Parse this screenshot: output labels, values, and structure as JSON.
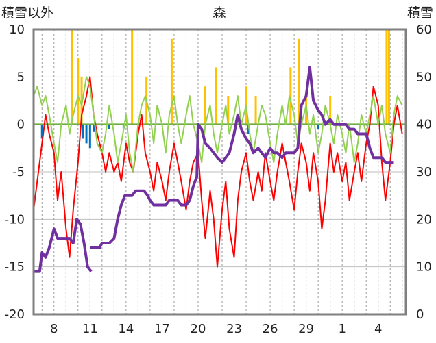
{
  "chart_data": {
    "type": "line",
    "title": "森",
    "left_axis_label": "積雪以外",
    "right_axis_label": "積雪",
    "ylim_left": [
      -20,
      10
    ],
    "yticks_left": [
      "10",
      "5",
      "0",
      "-5",
      "-10",
      "-15",
      "-20"
    ],
    "ylim_right": [
      0,
      60
    ],
    "yticks_right": [
      "60",
      "50",
      "40",
      "30",
      "20",
      "10",
      "0"
    ],
    "x_ticks": [
      "8",
      "11",
      "14",
      "17",
      "20",
      "23",
      "26",
      "29",
      "1",
      "4"
    ],
    "grid": true,
    "colors": {
      "temperature": "#ff0000",
      "humidity": "#92d050",
      "snow_depth": "#7030a0",
      "precip": "#ffc000",
      "negative": "#0070c0",
      "zero_line": "#70ad47"
    },
    "series": [
      {
        "key": "temperature",
        "axis": "left",
        "color": "#ff0000",
        "points": [
          [
            6.3,
            -9
          ],
          [
            6.6,
            -6
          ],
          [
            7.0,
            -2
          ],
          [
            7.3,
            1
          ],
          [
            7.6,
            -1
          ],
          [
            8.0,
            -3
          ],
          [
            8.3,
            -8
          ],
          [
            8.6,
            -5
          ],
          [
            9.0,
            -11
          ],
          [
            9.3,
            -14
          ],
          [
            9.6,
            -9
          ],
          [
            10.0,
            -4
          ],
          [
            10.3,
            1
          ],
          [
            10.7,
            3
          ],
          [
            11.0,
            5
          ],
          [
            11.3,
            1
          ],
          [
            11.6,
            -1
          ],
          [
            12.0,
            -3
          ],
          [
            12.3,
            -5
          ],
          [
            12.6,
            -3
          ],
          [
            13.0,
            -5
          ],
          [
            13.3,
            -4
          ],
          [
            13.6,
            -6
          ],
          [
            14.0,
            -2
          ],
          [
            14.3,
            -4
          ],
          [
            14.6,
            -5
          ],
          [
            15.0,
            -1
          ],
          [
            15.3,
            1
          ],
          [
            15.6,
            -3
          ],
          [
            16.0,
            -5
          ],
          [
            16.3,
            -7
          ],
          [
            16.6,
            -4
          ],
          [
            17.0,
            -6
          ],
          [
            17.3,
            -8
          ],
          [
            17.6,
            -5
          ],
          [
            18.0,
            -2
          ],
          [
            18.3,
            -4
          ],
          [
            18.6,
            -6
          ],
          [
            19.0,
            -9
          ],
          [
            19.3,
            -6
          ],
          [
            19.6,
            -4
          ],
          [
            20.0,
            -3
          ],
          [
            20.3,
            -8
          ],
          [
            20.6,
            -12
          ],
          [
            21.0,
            -7
          ],
          [
            21.3,
            -10
          ],
          [
            21.6,
            -15
          ],
          [
            22.0,
            -9
          ],
          [
            22.3,
            -6
          ],
          [
            22.6,
            -11
          ],
          [
            23.0,
            -14
          ],
          [
            23.3,
            -8
          ],
          [
            23.6,
            -5
          ],
          [
            24.0,
            -3
          ],
          [
            24.3,
            -6
          ],
          [
            24.6,
            -8
          ],
          [
            25.0,
            -5
          ],
          [
            25.3,
            -7
          ],
          [
            25.6,
            -3
          ],
          [
            26.0,
            -6
          ],
          [
            26.3,
            -8
          ],
          [
            26.6,
            -5
          ],
          [
            27.0,
            -2
          ],
          [
            27.3,
            -4
          ],
          [
            27.6,
            -6
          ],
          [
            28.0,
            -9
          ],
          [
            28.3,
            -5
          ],
          [
            28.6,
            -2
          ],
          [
            29.0,
            -4
          ],
          [
            29.3,
            -7
          ],
          [
            29.6,
            -3
          ],
          [
            30.0,
            -6
          ],
          [
            30.3,
            -11
          ],
          [
            30.6,
            -8
          ],
          [
            31.0,
            -2
          ],
          [
            31.3,
            -5
          ],
          [
            31.6,
            -3
          ],
          [
            32.0,
            -6
          ],
          [
            32.3,
            -4
          ],
          [
            32.6,
            -8
          ],
          [
            33.0,
            -5
          ],
          [
            33.3,
            -3
          ],
          [
            33.6,
            -6
          ],
          [
            34.0,
            -2
          ],
          [
            34.3,
            0
          ],
          [
            34.6,
            4
          ],
          [
            35.0,
            2
          ],
          [
            35.3,
            -4
          ],
          [
            35.6,
            -8
          ],
          [
            36.0,
            -4
          ],
          [
            36.3,
            0
          ],
          [
            36.6,
            2
          ],
          [
            37.0,
            -1
          ]
        ]
      },
      {
        "key": "humidity",
        "axis": "left",
        "color": "#92d050",
        "points": [
          [
            6.3,
            3
          ],
          [
            6.6,
            4
          ],
          [
            7.0,
            2
          ],
          [
            7.3,
            3
          ],
          [
            7.6,
            1
          ],
          [
            8.0,
            -2
          ],
          [
            8.3,
            -4
          ],
          [
            8.6,
            0
          ],
          [
            9.0,
            2
          ],
          [
            9.3,
            -1
          ],
          [
            9.6,
            1
          ],
          [
            10.0,
            3
          ],
          [
            10.3,
            2
          ],
          [
            10.7,
            5
          ],
          [
            11.0,
            4
          ],
          [
            11.3,
            1
          ],
          [
            11.6,
            -2
          ],
          [
            12.0,
            -3
          ],
          [
            12.3,
            -1
          ],
          [
            12.6,
            2
          ],
          [
            13.0,
            -1
          ],
          [
            13.3,
            -4
          ],
          [
            13.6,
            -2
          ],
          [
            14.0,
            1
          ],
          [
            14.3,
            -3
          ],
          [
            14.6,
            -5
          ],
          [
            15.0,
            0
          ],
          [
            15.3,
            2
          ],
          [
            15.6,
            3
          ],
          [
            16.0,
            1
          ],
          [
            16.3,
            -2
          ],
          [
            16.6,
            2
          ],
          [
            17.0,
            0
          ],
          [
            17.3,
            -3
          ],
          [
            17.6,
            1
          ],
          [
            18.0,
            3
          ],
          [
            18.3,
            0
          ],
          [
            18.6,
            -2
          ],
          [
            19.0,
            1
          ],
          [
            19.3,
            3
          ],
          [
            19.6,
            0
          ],
          [
            20.0,
            -2
          ],
          [
            20.3,
            -4
          ],
          [
            20.6,
            0
          ],
          [
            21.0,
            2
          ],
          [
            21.3,
            -1
          ],
          [
            21.6,
            -3
          ],
          [
            22.0,
            0
          ],
          [
            22.3,
            2
          ],
          [
            22.6,
            -1
          ],
          [
            23.0,
            1
          ],
          [
            23.3,
            3
          ],
          [
            23.6,
            0
          ],
          [
            24.0,
            2
          ],
          [
            24.3,
            -1
          ],
          [
            24.6,
            -3
          ],
          [
            25.0,
            0
          ],
          [
            25.3,
            2
          ],
          [
            25.6,
            1
          ],
          [
            26.0,
            -2
          ],
          [
            26.3,
            -4
          ],
          [
            26.6,
            -1
          ],
          [
            27.0,
            2
          ],
          [
            27.3,
            0
          ],
          [
            27.6,
            3
          ],
          [
            28.0,
            1
          ],
          [
            28.3,
            -2
          ],
          [
            28.6,
            0
          ],
          [
            29.0,
            2
          ],
          [
            29.3,
            -1
          ],
          [
            29.6,
            1
          ],
          [
            30.0,
            -3
          ],
          [
            30.3,
            -1
          ],
          [
            30.6,
            2
          ],
          [
            31.0,
            0
          ],
          [
            31.3,
            -2
          ],
          [
            31.6,
            1
          ],
          [
            32.0,
            -1
          ],
          [
            32.3,
            -3
          ],
          [
            32.6,
            0
          ],
          [
            33.0,
            -4
          ],
          [
            33.3,
            -2
          ],
          [
            33.6,
            1
          ],
          [
            34.0,
            -1
          ],
          [
            34.3,
            1
          ],
          [
            34.6,
            3
          ],
          [
            35.0,
            0
          ],
          [
            35.3,
            2
          ],
          [
            35.6,
            -1
          ],
          [
            36.0,
            -3
          ],
          [
            36.3,
            1
          ],
          [
            36.6,
            3
          ],
          [
            37.0,
            2
          ]
        ]
      },
      {
        "key": "snow_depth",
        "axis": "right",
        "color": "#7030a0",
        "points": [
          [
            6.3,
            9
          ],
          [
            6.8,
            9
          ],
          [
            7.0,
            13
          ],
          [
            7.3,
            12
          ],
          [
            7.6,
            14
          ],
          [
            8.0,
            18
          ],
          [
            8.3,
            16
          ],
          [
            8.6,
            16
          ],
          [
            9.0,
            16
          ],
          [
            9.3,
            16
          ],
          [
            9.6,
            15
          ],
          [
            9.9,
            20
          ],
          [
            10.2,
            19
          ],
          [
            10.5,
            15
          ],
          [
            10.8,
            10
          ],
          [
            11.1,
            9
          ],
          null,
          [
            11.0,
            14
          ],
          [
            11.8,
            14
          ],
          [
            12.0,
            15
          ],
          [
            12.6,
            15
          ],
          [
            13.0,
            16
          ],
          [
            13.3,
            20
          ],
          [
            13.6,
            23
          ],
          [
            13.9,
            25
          ],
          [
            14.2,
            25
          ],
          [
            14.5,
            25
          ],
          [
            14.8,
            26
          ],
          [
            15.2,
            26
          ],
          [
            15.5,
            26
          ],
          [
            15.8,
            25
          ],
          [
            16.0,
            24
          ],
          [
            16.3,
            23
          ],
          [
            16.6,
            23
          ],
          [
            17.0,
            23
          ],
          [
            17.3,
            23
          ],
          [
            17.6,
            24
          ],
          [
            18.0,
            24
          ],
          [
            18.3,
            24
          ],
          [
            18.6,
            23
          ],
          [
            19.0,
            23
          ],
          [
            19.3,
            24
          ],
          [
            19.6,
            27
          ],
          [
            19.9,
            29
          ],
          [
            20.0,
            40
          ],
          [
            20.3,
            39
          ],
          [
            20.6,
            36
          ],
          [
            21.0,
            35
          ],
          [
            21.3,
            34
          ],
          [
            21.6,
            33
          ],
          [
            22.0,
            32
          ],
          [
            22.3,
            33
          ],
          [
            22.6,
            34
          ],
          [
            23.0,
            38
          ],
          [
            23.3,
            42
          ],
          [
            23.6,
            39
          ],
          [
            24.0,
            37
          ],
          [
            24.3,
            36
          ],
          [
            24.6,
            34
          ],
          [
            25.0,
            35
          ],
          [
            25.3,
            34
          ],
          [
            25.6,
            33
          ],
          [
            26.0,
            35
          ],
          [
            26.3,
            34
          ],
          [
            26.6,
            34
          ],
          [
            27.0,
            33
          ],
          [
            27.3,
            34
          ],
          [
            27.6,
            34
          ],
          [
            28.0,
            34
          ],
          [
            28.3,
            35
          ],
          [
            28.6,
            44
          ],
          [
            29.0,
            46
          ],
          [
            29.3,
            52
          ],
          [
            29.6,
            45
          ],
          [
            30.0,
            43
          ],
          [
            30.3,
            42
          ],
          [
            30.6,
            40
          ],
          [
            31.0,
            41
          ],
          [
            31.3,
            40
          ],
          [
            31.6,
            40
          ],
          [
            32.0,
            40
          ],
          [
            32.3,
            40
          ],
          [
            32.6,
            39
          ],
          [
            33.0,
            39
          ],
          [
            33.3,
            38
          ],
          [
            33.6,
            38
          ],
          [
            34.0,
            38
          ],
          [
            34.3,
            35
          ],
          [
            34.6,
            33
          ],
          [
            35.0,
            33
          ],
          [
            35.3,
            33
          ],
          [
            35.6,
            32
          ],
          [
            36.0,
            32
          ],
          [
            36.3,
            32
          ]
        ]
      }
    ],
    "precip_bars": [
      [
        9.5,
        10
      ],
      [
        10.0,
        7
      ],
      [
        10.3,
        5
      ],
      [
        14.5,
        10
      ],
      [
        15.7,
        5
      ],
      [
        17.8,
        9
      ],
      [
        20.6,
        4
      ],
      [
        21.5,
        6
      ],
      [
        22.5,
        3
      ],
      [
        24.0,
        4
      ],
      [
        24.8,
        3
      ],
      [
        27.7,
        6
      ],
      [
        28.4,
        9
      ],
      [
        29.0,
        3
      ],
      [
        31.0,
        3
      ],
      [
        35.7,
        10
      ],
      [
        35.9,
        10
      ]
    ],
    "negative_bars": [
      [
        7.0,
        -1.5
      ],
      [
        10.4,
        -1.5
      ],
      [
        10.7,
        -2
      ],
      [
        11.0,
        -2.5
      ],
      [
        11.3,
        -0.8
      ],
      [
        12.6,
        -0.5
      ],
      [
        13.8,
        -0.4
      ],
      [
        24.2,
        -1
      ],
      [
        30.0,
        -0.5
      ]
    ]
  }
}
